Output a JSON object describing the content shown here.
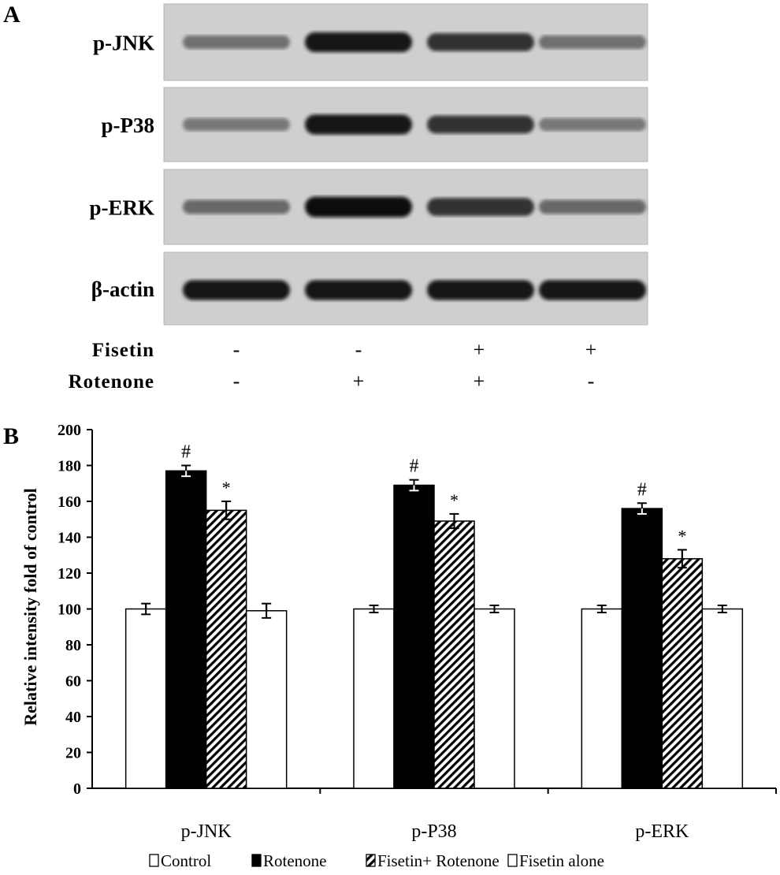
{
  "panel_a": {
    "label": "A",
    "rows": [
      {
        "name": "p-JNK",
        "band_intensity": [
          0.45,
          0.95,
          0.8,
          0.45
        ]
      },
      {
        "name": "p-P38",
        "band_intensity": [
          0.4,
          0.95,
          0.8,
          0.4
        ]
      },
      {
        "name": "p-ERK",
        "band_intensity": [
          0.5,
          1.0,
          0.8,
          0.5
        ]
      },
      {
        "name": "β-actin",
        "band_intensity": [
          0.95,
          0.95,
          0.95,
          0.95
        ]
      }
    ],
    "treatments": [
      {
        "name": "Fisetin",
        "signs": [
          "-",
          "-",
          "+",
          "+"
        ]
      },
      {
        "name": "Rotenone",
        "signs": [
          "-",
          "+",
          "+",
          "-"
        ]
      }
    ]
  },
  "chart_data": {
    "type": "bar",
    "panel_label": "B",
    "categories": [
      "p-JNK",
      "p-P38",
      "p-ERK"
    ],
    "ylabel": "Relative intensity  fold of control",
    "xlabel": "",
    "ylim": [
      0,
      200
    ],
    "yticks": [
      0,
      20,
      40,
      60,
      80,
      100,
      120,
      140,
      160,
      180,
      200
    ],
    "grid": false,
    "legend_position": "bottom",
    "series": [
      {
        "name": "Control",
        "fill": "white",
        "values": [
          100,
          100,
          100
        ],
        "errors": [
          3,
          2,
          2
        ],
        "annotations": [
          "",
          "",
          ""
        ]
      },
      {
        "name": "Rotenone",
        "fill": "black",
        "values": [
          177,
          169,
          156
        ],
        "errors": [
          3,
          3,
          3
        ],
        "annotations": [
          "#",
          "#",
          "#"
        ]
      },
      {
        "name": "Fisetin+ Rotenone",
        "fill": "hatched",
        "values": [
          155,
          149,
          128
        ],
        "errors": [
          5,
          4,
          5
        ],
        "annotations": [
          "*",
          "*",
          "*"
        ]
      },
      {
        "name": "Fisetin alone",
        "fill": "white",
        "values": [
          99,
          100,
          100
        ],
        "errors": [
          4,
          2,
          2
        ],
        "annotations": [
          "",
          "",
          ""
        ]
      }
    ]
  }
}
